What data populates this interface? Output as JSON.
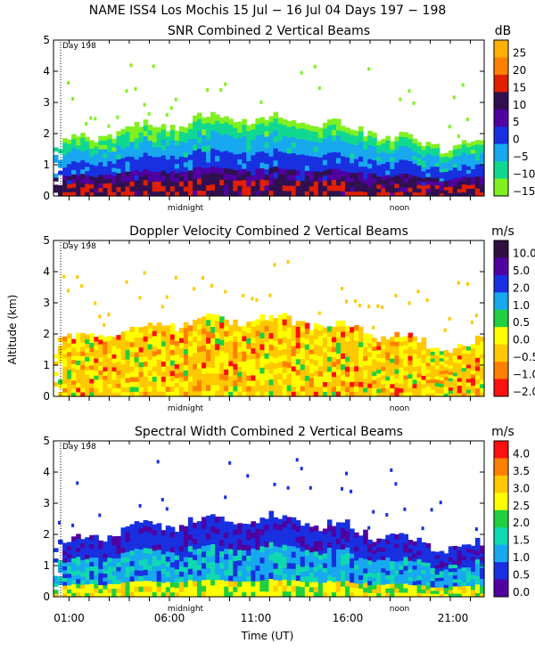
{
  "page": {
    "title": "NAME ISS4 Los Mochis  15 Jul − 16 Jul 04 Days 197 − 198",
    "xlabel": "Time (UT)",
    "ylabel": "Altitude (km)",
    "day_marker": "Day 198",
    "midnight_label": "midnight",
    "noon_label": "noon",
    "x_ticks": [
      "01:00",
      "06:00",
      "11:00",
      "16:00",
      "21:00"
    ]
  },
  "chart_data": [
    {
      "type": "heatmap",
      "title": "SNR Combined 2 Vertical Beams",
      "unit": "dB",
      "ylim": [
        0,
        5
      ],
      "y_ticks": [
        "0",
        "1",
        "2",
        "3",
        "4",
        "5"
      ],
      "colorbar": {
        "labels": [
          "25",
          "20",
          "15",
          "10",
          "5",
          "0",
          "−5",
          "−10",
          "−15"
        ],
        "colors": [
          "#ffb000",
          "#ff8000",
          "#e02000",
          "#301050",
          "#5000a0",
          "#1830e0",
          "#18a8f0",
          "#10d890",
          "#80f020"
        ]
      }
    },
    {
      "type": "heatmap",
      "title": "Doppler Velocity Combined 2 Vertical Beams",
      "unit": "m/s",
      "ylim": [
        0,
        5
      ],
      "y_ticks": [
        "0",
        "1",
        "2",
        "3",
        "4",
        "5"
      ],
      "colorbar": {
        "labels": [
          "10.0",
          "5.0",
          "2.0",
          "1.0",
          "0.5",
          "0.0",
          "−0.5",
          "−1.0",
          "−2.0"
        ],
        "colors": [
          "#301040",
          "#5000a0",
          "#1830e0",
          "#18a8f0",
          "#20d040",
          "#ffff00",
          "#ffc800",
          "#ff8000",
          "#ff1010"
        ]
      }
    },
    {
      "type": "heatmap",
      "title": "Spectral Width Combined 2 Vertical Beams",
      "unit": "m/s",
      "ylim": [
        0,
        5
      ],
      "y_ticks": [
        "0",
        "1",
        "2",
        "3",
        "4",
        "5"
      ],
      "colorbar": {
        "labels": [
          "4.0",
          "3.5",
          "3.0",
          "2.5",
          "2.0",
          "1.5",
          "1.0",
          "0.5",
          "0.0"
        ],
        "colors": [
          "#ff1010",
          "#ff8000",
          "#ffc800",
          "#ffff00",
          "#20d040",
          "#10d8b0",
          "#18a8f0",
          "#1830e0",
          "#5000a0"
        ]
      }
    }
  ]
}
